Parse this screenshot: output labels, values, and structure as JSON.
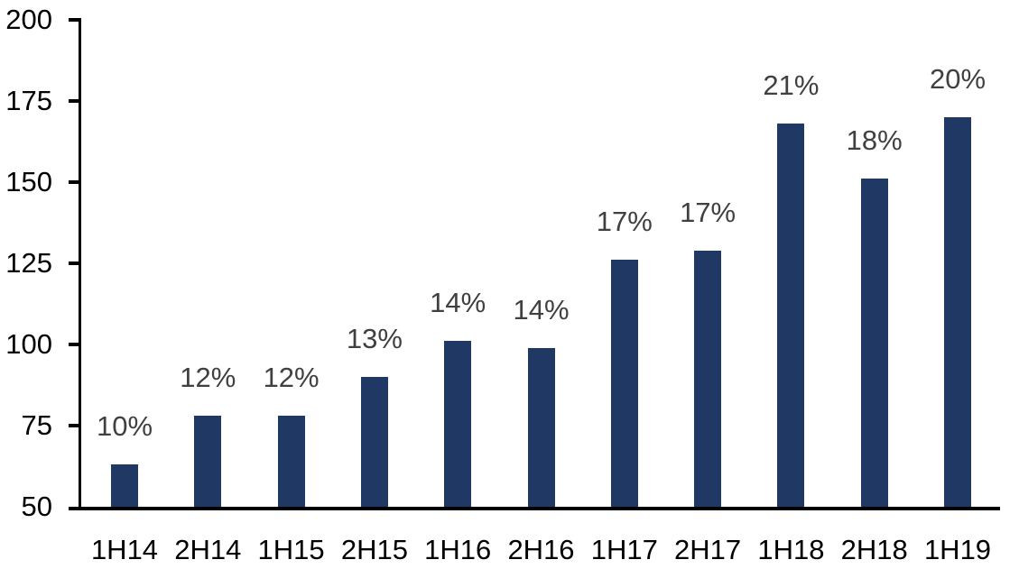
{
  "chart_data": {
    "type": "bar",
    "title": "",
    "xlabel": "",
    "ylabel": "",
    "categories": [
      "1H14",
      "2H14",
      "1H15",
      "2H15",
      "1H16",
      "2H16",
      "1H17",
      "2H17",
      "1H18",
      "2H18",
      "1H19"
    ],
    "values": [
      63,
      78,
      78,
      90,
      101,
      99,
      126,
      129,
      168,
      151,
      170
    ],
    "bar_labels": [
      "10%",
      "12%",
      "12%",
      "13%",
      "14%",
      "14%",
      "17%",
      "17%",
      "21%",
      "18%",
      "20%"
    ],
    "ylim": [
      50,
      200
    ],
    "y_ticks": [
      200,
      175,
      150,
      125,
      100,
      75,
      50
    ],
    "grid": false,
    "legend": false,
    "bar_color": "#1F3864",
    "data_label_color": "#404040",
    "axis_color": "#000000"
  }
}
